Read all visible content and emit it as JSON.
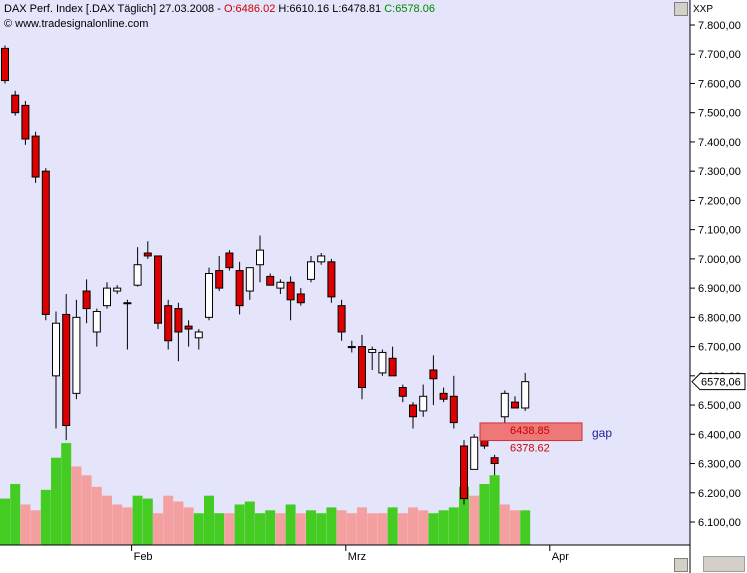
{
  "header": {
    "instrument": "DAX Perf. Index [.DAX Täglich]",
    "date": "27.03.2008",
    "open": "O:6486.02",
    "high": "H:6610.16",
    "low": "L:6478.81",
    "close": "C:6578.06"
  },
  "source": "© www.tradesignalonline.com",
  "axis_label": "XXP",
  "last_price_label": "6578,06",
  "gap": {
    "label": "gap",
    "upper_label": "6438.85",
    "lower_label": "6378.62",
    "upper": 6438.85,
    "lower": 6378.62
  },
  "colors": {
    "up_candle": "#ffffff",
    "down_candle": "#dd0000",
    "volume_up": "#44cc22",
    "volume_down": "#f4a0a0",
    "gap_fill": "#ee7777",
    "background": "#e4e4fb"
  },
  "chart_data": {
    "type": "candlestick",
    "ylim": [
      6030,
      7850
    ],
    "y_ticks": [
      "6.100,00",
      "6.200,00",
      "6.300,00",
      "6.400,00",
      "6.500,00",
      "6.600,00",
      "6.700,00",
      "6.800,00",
      "6.900,00",
      "7.000,00",
      "7.100,00",
      "7.200,00",
      "7.300,00",
      "7.400,00",
      "7.500,00",
      "7.600,00",
      "7.700,00",
      "7.800,00"
    ],
    "y_tick_values": [
      6100,
      6200,
      6300,
      6400,
      6500,
      6600,
      6700,
      6800,
      6900,
      7000,
      7100,
      7200,
      7300,
      7400,
      7500,
      7600,
      7700,
      7800
    ],
    "x_ticks": [
      {
        "label": "Feb",
        "index": 13
      },
      {
        "label": "Mrz",
        "index": 34
      },
      {
        "label": "Apr",
        "index": 54
      }
    ],
    "candles": [
      {
        "o": 7720,
        "h": 7730,
        "l": 7600,
        "c": 7610
      },
      {
        "o": 7560,
        "h": 7575,
        "l": 7490,
        "c": 7500
      },
      {
        "o": 7525,
        "h": 7540,
        "l": 7390,
        "c": 7410
      },
      {
        "o": 7420,
        "h": 7435,
        "l": 7260,
        "c": 7280
      },
      {
        "o": 7300,
        "h": 7310,
        "l": 6790,
        "c": 6810
      },
      {
        "o": 6600,
        "h": 6820,
        "l": 6420,
        "c": 6780
      },
      {
        "o": 6810,
        "h": 6880,
        "l": 6380,
        "c": 6430
      },
      {
        "o": 6540,
        "h": 6860,
        "l": 6520,
        "c": 6800
      },
      {
        "o": 6890,
        "h": 6930,
        "l": 6780,
        "c": 6830
      },
      {
        "o": 6750,
        "h": 6830,
        "l": 6700,
        "c": 6820
      },
      {
        "o": 6840,
        "h": 6920,
        "l": 6830,
        "c": 6900
      },
      {
        "o": 6890,
        "h": 6910,
        "l": 6880,
        "c": 6900
      },
      {
        "o": 6850,
        "h": 6860,
        "l": 6690,
        "c": 6850
      },
      {
        "o": 6910,
        "h": 7040,
        "l": 6905,
        "c": 6980
      },
      {
        "o": 7020,
        "h": 7060,
        "l": 7000,
        "c": 7010
      },
      {
        "o": 7010,
        "h": 7010,
        "l": 6760,
        "c": 6780
      },
      {
        "o": 6840,
        "h": 6860,
        "l": 6690,
        "c": 6720
      },
      {
        "o": 6830,
        "h": 6850,
        "l": 6650,
        "c": 6750
      },
      {
        "o": 6770,
        "h": 6790,
        "l": 6700,
        "c": 6760
      },
      {
        "o": 6730,
        "h": 6760,
        "l": 6690,
        "c": 6750
      },
      {
        "o": 6800,
        "h": 6970,
        "l": 6790,
        "c": 6950
      },
      {
        "o": 6960,
        "h": 7010,
        "l": 6890,
        "c": 6900
      },
      {
        "o": 7020,
        "h": 7030,
        "l": 6960,
        "c": 6970
      },
      {
        "o": 6960,
        "h": 6990,
        "l": 6810,
        "c": 6840
      },
      {
        "o": 6890,
        "h": 6970,
        "l": 6860,
        "c": 6970
      },
      {
        "o": 6980,
        "h": 7080,
        "l": 6920,
        "c": 7030
      },
      {
        "o": 6940,
        "h": 6950,
        "l": 6910,
        "c": 6910
      },
      {
        "o": 6900,
        "h": 6930,
        "l": 6880,
        "c": 6920
      },
      {
        "o": 6920,
        "h": 6940,
        "l": 6790,
        "c": 6860
      },
      {
        "o": 6880,
        "h": 6900,
        "l": 6840,
        "c": 6850
      },
      {
        "o": 6930,
        "h": 7010,
        "l": 6920,
        "c": 6990
      },
      {
        "o": 6990,
        "h": 7020,
        "l": 6980,
        "c": 7010
      },
      {
        "o": 6990,
        "h": 7000,
        "l": 6850,
        "c": 6870
      },
      {
        "o": 6840,
        "h": 6860,
        "l": 6720,
        "c": 6750
      },
      {
        "o": 6700,
        "h": 6720,
        "l": 6680,
        "c": 6700
      },
      {
        "o": 6700,
        "h": 6740,
        "l": 6520,
        "c": 6560
      },
      {
        "o": 6680,
        "h": 6700,
        "l": 6620,
        "c": 6690
      },
      {
        "o": 6610,
        "h": 6690,
        "l": 6600,
        "c": 6680
      },
      {
        "o": 6660,
        "h": 6700,
        "l": 6600,
        "c": 6600
      },
      {
        "o": 6560,
        "h": 6570,
        "l": 6510,
        "c": 6530
      },
      {
        "o": 6500,
        "h": 6510,
        "l": 6420,
        "c": 6460
      },
      {
        "o": 6480,
        "h": 6570,
        "l": 6460,
        "c": 6530
      },
      {
        "o": 6620,
        "h": 6670,
        "l": 6500,
        "c": 6590
      },
      {
        "o": 6540,
        "h": 6560,
        "l": 6510,
        "c": 6520
      },
      {
        "o": 6530,
        "h": 6600,
        "l": 6420,
        "c": 6440
      },
      {
        "o": 6360,
        "h": 6380,
        "l": 6160,
        "c": 6180
      },
      {
        "o": 6280,
        "h": 6400,
        "l": 6280,
        "c": 6390
      },
      {
        "o": 6400,
        "h": 6430,
        "l": 6350,
        "c": 6360
      },
      {
        "o": 6320,
        "h": 6330,
        "l": 6260,
        "c": 6300
      },
      {
        "o": 6460,
        "h": 6550,
        "l": 6440,
        "c": 6540
      },
      {
        "o": 6510,
        "h": 6530,
        "l": 6490,
        "c": 6490
      },
      {
        "o": 6490,
        "h": 6610,
        "l": 6480,
        "c": 6580
      }
    ],
    "volume": [
      {
        "v": 6180,
        "up": true
      },
      {
        "v": 6230,
        "up": true
      },
      {
        "v": 6160,
        "up": false
      },
      {
        "v": 6140,
        "up": false
      },
      {
        "v": 6210,
        "up": true
      },
      {
        "v": 6320,
        "up": true
      },
      {
        "v": 6370,
        "up": true
      },
      {
        "v": 6290,
        "up": false
      },
      {
        "v": 6260,
        "up": false
      },
      {
        "v": 6220,
        "up": false
      },
      {
        "v": 6190,
        "up": false
      },
      {
        "v": 6160,
        "up": false
      },
      {
        "v": 6150,
        "up": false
      },
      {
        "v": 6190,
        "up": true
      },
      {
        "v": 6180,
        "up": true
      },
      {
        "v": 6130,
        "up": false
      },
      {
        "v": 6190,
        "up": false
      },
      {
        "v": 6170,
        "up": false
      },
      {
        "v": 6150,
        "up": false
      },
      {
        "v": 6130,
        "up": true
      },
      {
        "v": 6190,
        "up": true
      },
      {
        "v": 6130,
        "up": true
      },
      {
        "v": 6130,
        "up": false
      },
      {
        "v": 6160,
        "up": true
      },
      {
        "v": 6170,
        "up": true
      },
      {
        "v": 6130,
        "up": true
      },
      {
        "v": 6140,
        "up": true
      },
      {
        "v": 6130,
        "up": false
      },
      {
        "v": 6160,
        "up": true
      },
      {
        "v": 6130,
        "up": false
      },
      {
        "v": 6140,
        "up": true
      },
      {
        "v": 6130,
        "up": true
      },
      {
        "v": 6150,
        "up": true
      },
      {
        "v": 6140,
        "up": false
      },
      {
        "v": 6130,
        "up": false
      },
      {
        "v": 6150,
        "up": false
      },
      {
        "v": 6130,
        "up": false
      },
      {
        "v": 6130,
        "up": false
      },
      {
        "v": 6150,
        "up": true
      },
      {
        "v": 6130,
        "up": false
      },
      {
        "v": 6150,
        "up": false
      },
      {
        "v": 6140,
        "up": false
      },
      {
        "v": 6130,
        "up": true
      },
      {
        "v": 6140,
        "up": true
      },
      {
        "v": 6150,
        "up": true
      },
      {
        "v": 6220,
        "up": true
      },
      {
        "v": 6190,
        "up": false
      },
      {
        "v": 6230,
        "up": true
      },
      {
        "v": 6260,
        "up": true
      },
      {
        "v": 6160,
        "up": false
      },
      {
        "v": 6140,
        "up": false
      },
      {
        "v": 6140,
        "up": true
      }
    ]
  }
}
